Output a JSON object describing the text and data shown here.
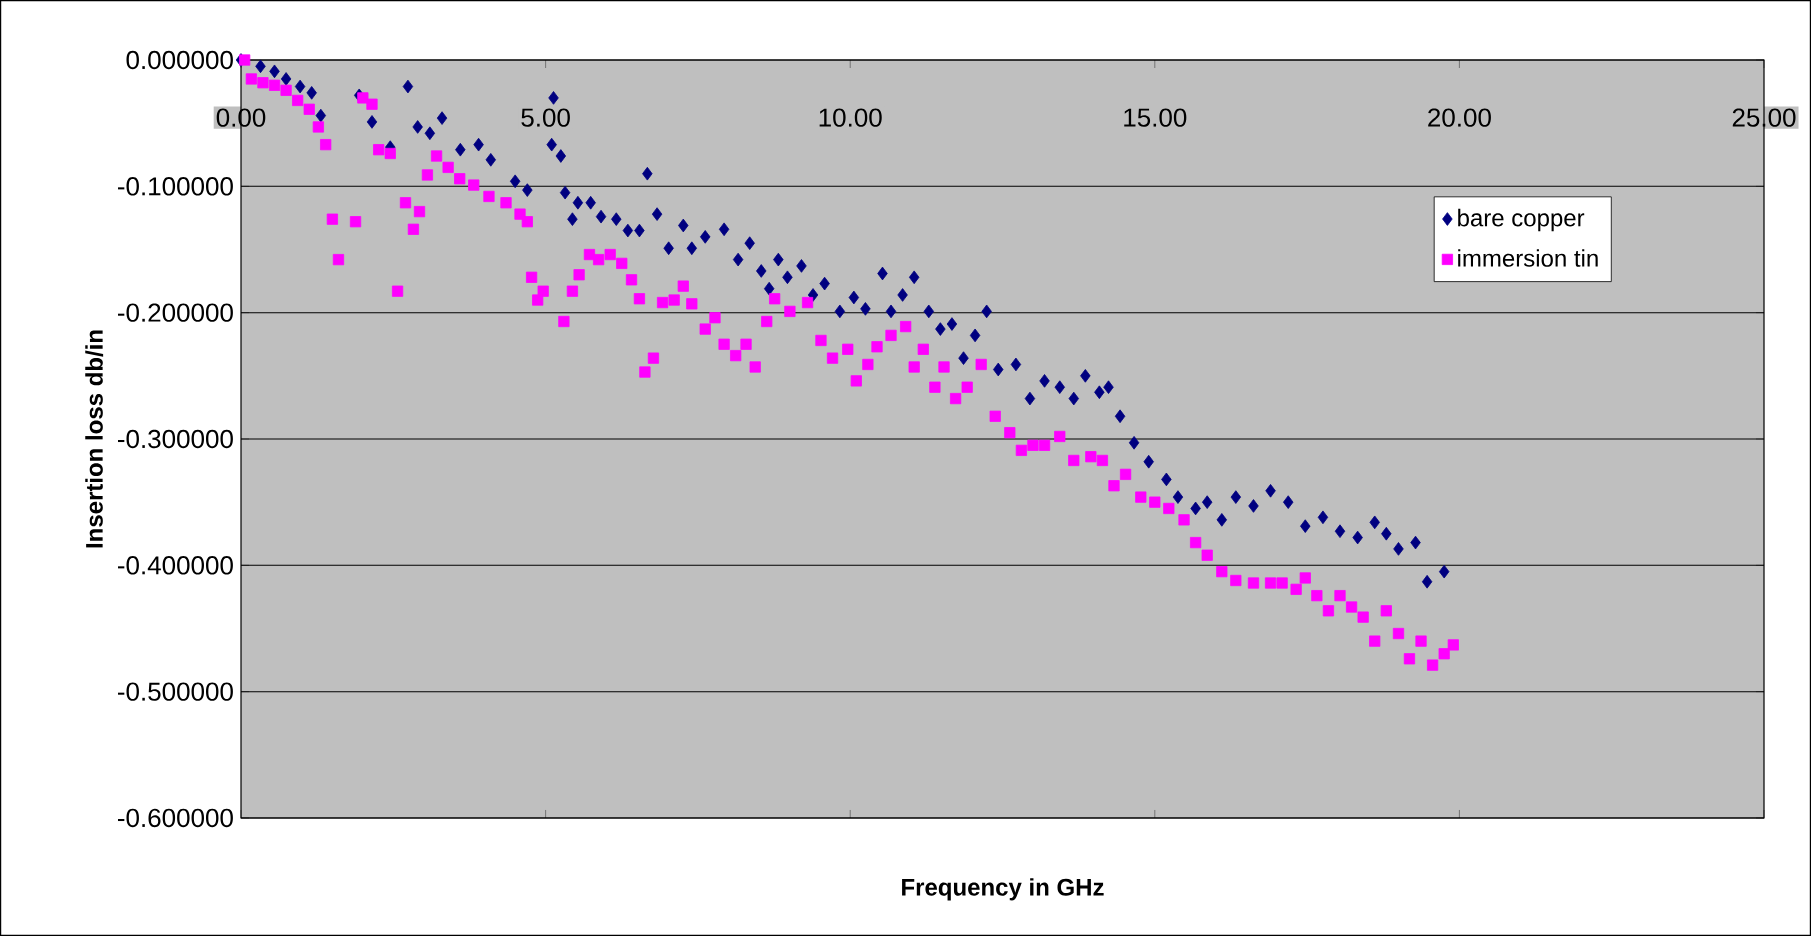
{
  "chart_data": {
    "type": "scatter",
    "xlabel": "Frequency in GHz",
    "ylabel": "Insertion loss db/in",
    "xlim": [
      0,
      25
    ],
    "ylim": [
      -0.6,
      0
    ],
    "xticks": [
      {
        "value": 0,
        "label": "0.00"
      },
      {
        "value": 5,
        "label": "5.00"
      },
      {
        "value": 10,
        "label": "10.00"
      },
      {
        "value": 15,
        "label": "15.00"
      },
      {
        "value": 20,
        "label": "20.00"
      },
      {
        "value": 25,
        "label": "25.00"
      }
    ],
    "yticks": [
      {
        "value": -0.6,
        "label": "-0.600000"
      },
      {
        "value": -0.5,
        "label": "-0.500000"
      },
      {
        "value": -0.4,
        "label": "-0.400000"
      },
      {
        "value": -0.3,
        "label": "-0.300000"
      },
      {
        "value": -0.2,
        "label": "-0.200000"
      },
      {
        "value": -0.1,
        "label": "-0.100000"
      },
      {
        "value": 0,
        "label": "0.000000"
      }
    ],
    "grid": "y",
    "legend": "top right",
    "series": [
      {
        "name": "bare copper",
        "color": "#000080",
        "marker": "diamond",
        "x": [
          0.0,
          0.32,
          0.55,
          0.74,
          0.97,
          1.16,
          1.31,
          1.94,
          2.15,
          2.45,
          2.74,
          2.9,
          3.1,
          3.3,
          3.6,
          3.9,
          4.1,
          4.5,
          4.7,
          5.1,
          5.13,
          5.25,
          5.32,
          5.44,
          5.53,
          5.74,
          5.91,
          6.16,
          6.35,
          6.54,
          6.67,
          6.83,
          7.02,
          7.26,
          7.4,
          7.62,
          7.93,
          8.16,
          8.35,
          8.54,
          8.67,
          8.82,
          8.97,
          9.2,
          9.39,
          9.58,
          9.83,
          10.06,
          10.25,
          10.53,
          10.67,
          10.86,
          11.05,
          11.29,
          11.48,
          11.67,
          11.86,
          12.05,
          12.24,
          12.43,
          12.72,
          12.95,
          13.19,
          13.44,
          13.67,
          13.86,
          14.09,
          14.24,
          14.43,
          14.66,
          14.9,
          15.19,
          15.38,
          15.67,
          15.86,
          16.1,
          16.33,
          16.62,
          16.9,
          17.19,
          17.47,
          17.76,
          18.04,
          18.33,
          18.61,
          18.8,
          19.0,
          19.28,
          19.47,
          19.75
        ],
        "values": [
          0.0,
          -0.005,
          -0.009,
          -0.015,
          -0.021,
          -0.026,
          -0.044,
          -0.028,
          -0.049,
          -0.069,
          -0.021,
          -0.053,
          -0.058,
          -0.046,
          -0.071,
          -0.067,
          -0.079,
          -0.096,
          -0.103,
          -0.067,
          -0.03,
          -0.076,
          -0.105,
          -0.126,
          -0.113,
          -0.113,
          -0.124,
          -0.126,
          -0.135,
          -0.135,
          -0.09,
          -0.122,
          -0.149,
          -0.131,
          -0.149,
          -0.14,
          -0.134,
          -0.158,
          -0.145,
          -0.167,
          -0.181,
          -0.158,
          -0.172,
          -0.163,
          -0.186,
          -0.177,
          -0.199,
          -0.188,
          -0.197,
          -0.169,
          -0.199,
          -0.186,
          -0.172,
          -0.199,
          -0.213,
          -0.209,
          -0.236,
          -0.218,
          -0.199,
          -0.245,
          -0.241,
          -0.268,
          -0.254,
          -0.259,
          -0.268,
          -0.25,
          -0.263,
          -0.259,
          -0.282,
          -0.303,
          -0.318,
          -0.332,
          -0.346,
          -0.355,
          -0.35,
          -0.364,
          -0.346,
          -0.353,
          -0.341,
          -0.35,
          -0.369,
          -0.362,
          -0.373,
          -0.378,
          -0.366,
          -0.375,
          -0.387,
          -0.382,
          -0.413,
          -0.405
        ]
      },
      {
        "name": "immersion tin",
        "color": "#ff00ff",
        "marker": "square",
        "x": [
          0.06,
          0.17,
          0.36,
          0.55,
          0.74,
          0.93,
          1.12,
          1.27,
          1.39,
          1.5,
          1.6,
          1.88,
          2.0,
          2.15,
          2.26,
          2.45,
          2.57,
          2.7,
          2.83,
          2.93,
          3.06,
          3.21,
          3.4,
          3.59,
          3.82,
          4.07,
          4.35,
          4.58,
          4.7,
          4.77,
          4.87,
          4.96,
          5.3,
          5.44,
          5.55,
          5.72,
          5.87,
          6.06,
          6.25,
          6.41,
          6.54,
          6.63,
          6.77,
          6.92,
          7.11,
          7.26,
          7.4,
          7.62,
          7.78,
          7.93,
          8.12,
          8.29,
          8.44,
          8.63,
          8.76,
          9.01,
          9.3,
          9.52,
          9.71,
          9.96,
          10.1,
          10.29,
          10.44,
          10.67,
          10.91,
          11.05,
          11.2,
          11.39,
          11.54,
          11.73,
          11.92,
          12.15,
          12.38,
          12.62,
          12.81,
          13.0,
          13.19,
          13.44,
          13.67,
          13.95,
          14.14,
          14.33,
          14.52,
          14.77,
          15.0,
          15.23,
          15.48,
          15.67,
          15.86,
          16.1,
          16.33,
          16.62,
          16.9,
          17.09,
          17.32,
          17.47,
          17.66,
          17.85,
          18.04,
          18.23,
          18.42,
          18.61,
          18.8,
          19.0,
          19.18,
          19.37,
          19.56,
          19.75,
          19.9
        ],
        "values": [
          0.0,
          -0.015,
          -0.018,
          -0.02,
          -0.024,
          -0.032,
          -0.039,
          -0.053,
          -0.067,
          -0.126,
          -0.158,
          -0.128,
          -0.03,
          -0.035,
          -0.071,
          -0.074,
          -0.183,
          -0.113,
          -0.134,
          -0.12,
          -0.091,
          -0.076,
          -0.085,
          -0.094,
          -0.099,
          -0.108,
          -0.113,
          -0.122,
          -0.128,
          -0.172,
          -0.19,
          -0.183,
          -0.207,
          -0.183,
          -0.17,
          -0.154,
          -0.158,
          -0.154,
          -0.161,
          -0.174,
          -0.189,
          -0.247,
          -0.236,
          -0.192,
          -0.19,
          -0.179,
          -0.193,
          -0.213,
          -0.204,
          -0.225,
          -0.234,
          -0.225,
          -0.243,
          -0.207,
          -0.189,
          -0.199,
          -0.192,
          -0.222,
          -0.236,
          -0.229,
          -0.254,
          -0.241,
          -0.227,
          -0.218,
          -0.211,
          -0.243,
          -0.229,
          -0.259,
          -0.243,
          -0.268,
          -0.259,
          -0.241,
          -0.282,
          -0.295,
          -0.309,
          -0.305,
          -0.305,
          -0.298,
          -0.317,
          -0.314,
          -0.317,
          -0.337,
          -0.328,
          -0.346,
          -0.35,
          -0.355,
          -0.364,
          -0.382,
          -0.392,
          -0.405,
          -0.412,
          -0.414,
          -0.414,
          -0.414,
          -0.419,
          -0.41,
          -0.424,
          -0.436,
          -0.424,
          -0.433,
          -0.441,
          -0.46,
          -0.436,
          -0.454,
          -0.474,
          -0.46,
          -0.479,
          -0.47,
          -0.463
        ]
      }
    ]
  }
}
